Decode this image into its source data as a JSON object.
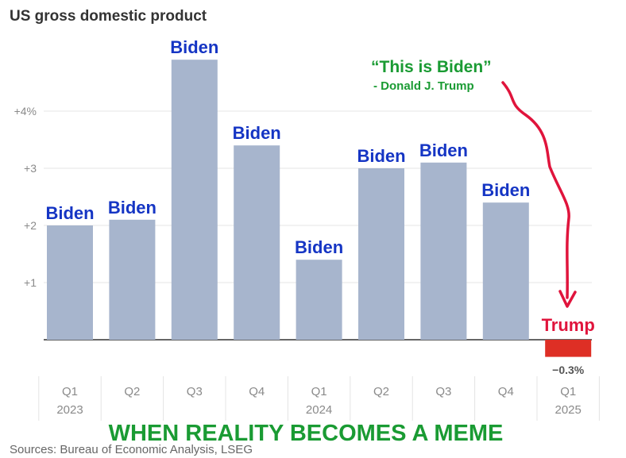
{
  "colors": {
    "bar": "#a7b5cd",
    "negative_bar": "#de2f25",
    "biden_label": "#1535c4",
    "trump_label": "#e0143c",
    "quote": "#1a9b33",
    "caption": "#1a9b33",
    "arrow": "#e0143c",
    "grid": "#e4e4e4",
    "axis": "#333333"
  },
  "chart_data": {
    "type": "bar",
    "title": "US gross domestic product",
    "categories": [
      "Q1 2023",
      "Q2 2023",
      "Q3 2023",
      "Q4 2023",
      "Q1 2024",
      "Q2 2024",
      "Q3 2024",
      "Q4 2024",
      "Q1 2025"
    ],
    "values": [
      2.0,
      2.1,
      4.9,
      3.4,
      1.4,
      3.0,
      3.1,
      2.4,
      -0.3
    ],
    "x_tick_labels": [
      {
        "quarter": "Q1",
        "year": "2023"
      },
      {
        "quarter": "Q2",
        "year": ""
      },
      {
        "quarter": "Q3",
        "year": ""
      },
      {
        "quarter": "Q4",
        "year": ""
      },
      {
        "quarter": "Q1",
        "year": "2024"
      },
      {
        "quarter": "Q2",
        "year": ""
      },
      {
        "quarter": "Q3",
        "year": ""
      },
      {
        "quarter": "Q4",
        "year": ""
      },
      {
        "quarter": "Q1",
        "year": "2025"
      }
    ],
    "y_ticks": [
      {
        "value": 1,
        "label": "+1"
      },
      {
        "value": 2,
        "label": "+2"
      },
      {
        "value": 3,
        "label": "+3"
      },
      {
        "value": 4,
        "label": "+4%"
      }
    ],
    "ylim": [
      -0.4,
      5.2
    ],
    "grid": true,
    "bar_annotations": [
      "Biden",
      "Biden",
      "Biden",
      "Biden",
      "Biden",
      "Biden",
      "Biden",
      "Biden",
      "Trump"
    ],
    "value_labels": [
      {
        "index": 8,
        "text": "−0.3%"
      }
    ]
  },
  "quote": {
    "text": "“This is Biden”",
    "attribution": "- Donald J. Trump"
  },
  "caption": "WHEN REALITY BECOMES A MEME",
  "source": "Sources: Bureau of Economic Analysis, LSEG"
}
